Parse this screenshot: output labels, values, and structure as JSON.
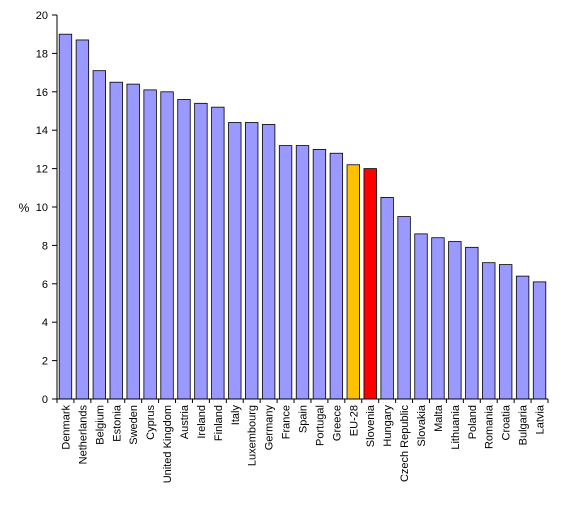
{
  "chart_data": {
    "type": "bar",
    "title": "",
    "xlabel": "",
    "ylabel": "%",
    "ylim": [
      0,
      20
    ],
    "yticks": [
      0,
      2,
      4,
      6,
      8,
      10,
      12,
      14,
      16,
      18,
      20
    ],
    "grid": false,
    "legend": "none",
    "categories": [
      "Denmark",
      "Netherlands",
      "Belgium",
      "Estonia",
      "Sweden",
      "Cyprus",
      "United Kingdom",
      "Austria",
      "Ireland",
      "Finland",
      "Italy",
      "Luxembourg",
      "Germany",
      "France",
      "Spain",
      "Portugal",
      "Greece",
      "EU-28",
      "Slovenia",
      "Hungary",
      "Czech Republic",
      "Slovakia",
      "Malta",
      "Lithuania",
      "Poland",
      "Romania",
      "Croatia",
      "Bulgaria",
      "Latvia"
    ],
    "values": [
      19.0,
      18.7,
      17.1,
      16.5,
      16.4,
      16.1,
      16.0,
      15.6,
      15.4,
      15.2,
      14.4,
      14.4,
      14.3,
      13.2,
      13.2,
      13.0,
      12.8,
      12.2,
      12.0,
      10.5,
      9.5,
      8.6,
      8.4,
      8.2,
      7.9,
      7.1,
      7.0,
      6.4,
      6.1
    ],
    "colors": {
      "default": "#9999ff",
      "highlights": {
        "EU-28": "#ffc000",
        "Slovenia": "#ff0000"
      },
      "bar_outline": "#000000",
      "axis": "#000000"
    }
  }
}
